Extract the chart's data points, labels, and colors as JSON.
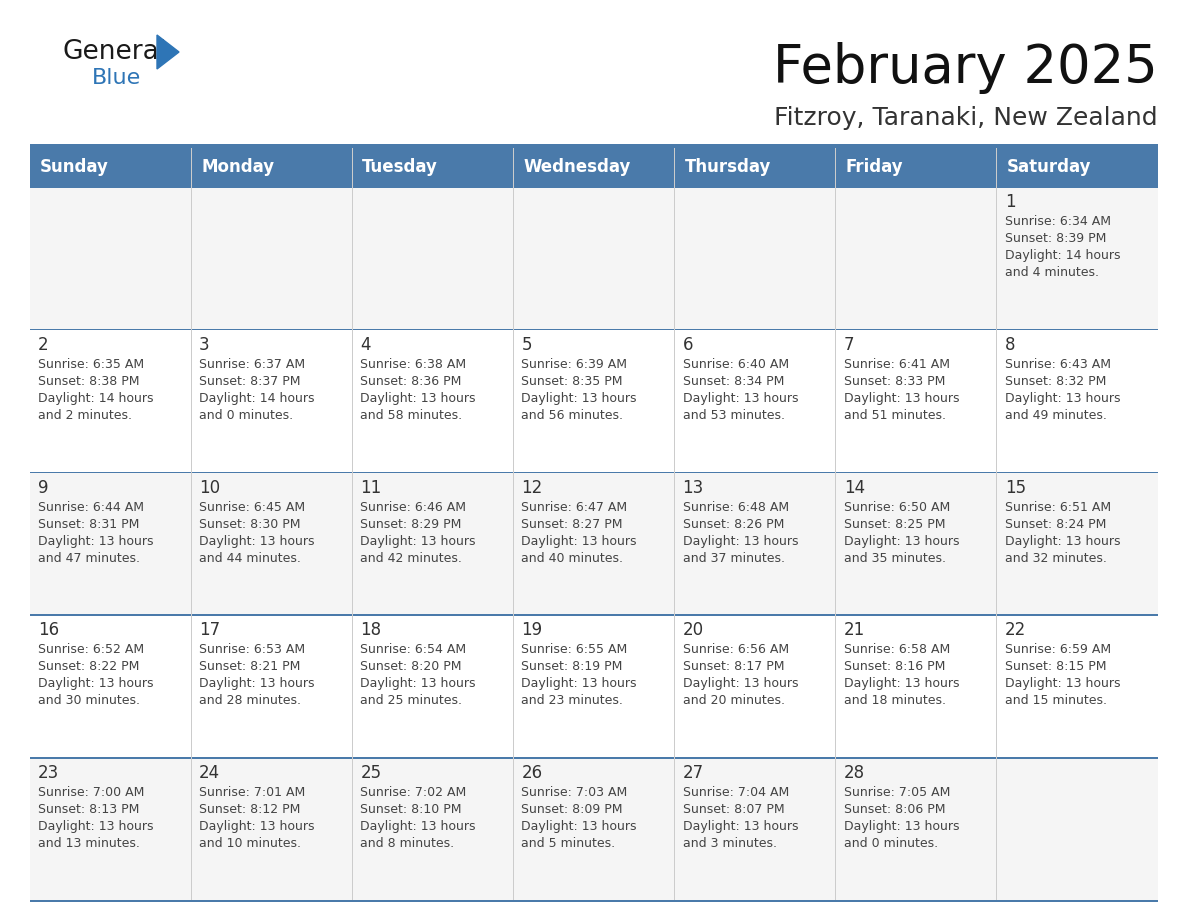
{
  "title": "February 2025",
  "subtitle": "Fitzroy, Taranaki, New Zealand",
  "days_of_week": [
    "Sunday",
    "Monday",
    "Tuesday",
    "Wednesday",
    "Thursday",
    "Friday",
    "Saturday"
  ],
  "header_bg": "#4a7aaa",
  "header_text": "#FFFFFF",
  "row_bg_light": "#F5F5F5",
  "row_bg_white": "#FFFFFF",
  "cell_text_color": "#444444",
  "day_number_color": "#333333",
  "title_color": "#111111",
  "subtitle_color": "#333333",
  "logo_black": "#1a1a1a",
  "logo_blue": "#2E75B6",
  "divider_color": "#4a7aaa",
  "weeks": [
    {
      "days": [
        {
          "day": null,
          "info": ""
        },
        {
          "day": null,
          "info": ""
        },
        {
          "day": null,
          "info": ""
        },
        {
          "day": null,
          "info": ""
        },
        {
          "day": null,
          "info": ""
        },
        {
          "day": null,
          "info": ""
        },
        {
          "day": 1,
          "info": "Sunrise: 6:34 AM\nSunset: 8:39 PM\nDaylight: 14 hours\nand 4 minutes."
        }
      ]
    },
    {
      "days": [
        {
          "day": 2,
          "info": "Sunrise: 6:35 AM\nSunset: 8:38 PM\nDaylight: 14 hours\nand 2 minutes."
        },
        {
          "day": 3,
          "info": "Sunrise: 6:37 AM\nSunset: 8:37 PM\nDaylight: 14 hours\nand 0 minutes."
        },
        {
          "day": 4,
          "info": "Sunrise: 6:38 AM\nSunset: 8:36 PM\nDaylight: 13 hours\nand 58 minutes."
        },
        {
          "day": 5,
          "info": "Sunrise: 6:39 AM\nSunset: 8:35 PM\nDaylight: 13 hours\nand 56 minutes."
        },
        {
          "day": 6,
          "info": "Sunrise: 6:40 AM\nSunset: 8:34 PM\nDaylight: 13 hours\nand 53 minutes."
        },
        {
          "day": 7,
          "info": "Sunrise: 6:41 AM\nSunset: 8:33 PM\nDaylight: 13 hours\nand 51 minutes."
        },
        {
          "day": 8,
          "info": "Sunrise: 6:43 AM\nSunset: 8:32 PM\nDaylight: 13 hours\nand 49 minutes."
        }
      ]
    },
    {
      "days": [
        {
          "day": 9,
          "info": "Sunrise: 6:44 AM\nSunset: 8:31 PM\nDaylight: 13 hours\nand 47 minutes."
        },
        {
          "day": 10,
          "info": "Sunrise: 6:45 AM\nSunset: 8:30 PM\nDaylight: 13 hours\nand 44 minutes."
        },
        {
          "day": 11,
          "info": "Sunrise: 6:46 AM\nSunset: 8:29 PM\nDaylight: 13 hours\nand 42 minutes."
        },
        {
          "day": 12,
          "info": "Sunrise: 6:47 AM\nSunset: 8:27 PM\nDaylight: 13 hours\nand 40 minutes."
        },
        {
          "day": 13,
          "info": "Sunrise: 6:48 AM\nSunset: 8:26 PM\nDaylight: 13 hours\nand 37 minutes."
        },
        {
          "day": 14,
          "info": "Sunrise: 6:50 AM\nSunset: 8:25 PM\nDaylight: 13 hours\nand 35 minutes."
        },
        {
          "day": 15,
          "info": "Sunrise: 6:51 AM\nSunset: 8:24 PM\nDaylight: 13 hours\nand 32 minutes."
        }
      ]
    },
    {
      "days": [
        {
          "day": 16,
          "info": "Sunrise: 6:52 AM\nSunset: 8:22 PM\nDaylight: 13 hours\nand 30 minutes."
        },
        {
          "day": 17,
          "info": "Sunrise: 6:53 AM\nSunset: 8:21 PM\nDaylight: 13 hours\nand 28 minutes."
        },
        {
          "day": 18,
          "info": "Sunrise: 6:54 AM\nSunset: 8:20 PM\nDaylight: 13 hours\nand 25 minutes."
        },
        {
          "day": 19,
          "info": "Sunrise: 6:55 AM\nSunset: 8:19 PM\nDaylight: 13 hours\nand 23 minutes."
        },
        {
          "day": 20,
          "info": "Sunrise: 6:56 AM\nSunset: 8:17 PM\nDaylight: 13 hours\nand 20 minutes."
        },
        {
          "day": 21,
          "info": "Sunrise: 6:58 AM\nSunset: 8:16 PM\nDaylight: 13 hours\nand 18 minutes."
        },
        {
          "day": 22,
          "info": "Sunrise: 6:59 AM\nSunset: 8:15 PM\nDaylight: 13 hours\nand 15 minutes."
        }
      ]
    },
    {
      "days": [
        {
          "day": 23,
          "info": "Sunrise: 7:00 AM\nSunset: 8:13 PM\nDaylight: 13 hours\nand 13 minutes."
        },
        {
          "day": 24,
          "info": "Sunrise: 7:01 AM\nSunset: 8:12 PM\nDaylight: 13 hours\nand 10 minutes."
        },
        {
          "day": 25,
          "info": "Sunrise: 7:02 AM\nSunset: 8:10 PM\nDaylight: 13 hours\nand 8 minutes."
        },
        {
          "day": 26,
          "info": "Sunrise: 7:03 AM\nSunset: 8:09 PM\nDaylight: 13 hours\nand 5 minutes."
        },
        {
          "day": 27,
          "info": "Sunrise: 7:04 AM\nSunset: 8:07 PM\nDaylight: 13 hours\nand 3 minutes."
        },
        {
          "day": 28,
          "info": "Sunrise: 7:05 AM\nSunset: 8:06 PM\nDaylight: 13 hours\nand 0 minutes."
        },
        {
          "day": null,
          "info": ""
        }
      ]
    }
  ]
}
